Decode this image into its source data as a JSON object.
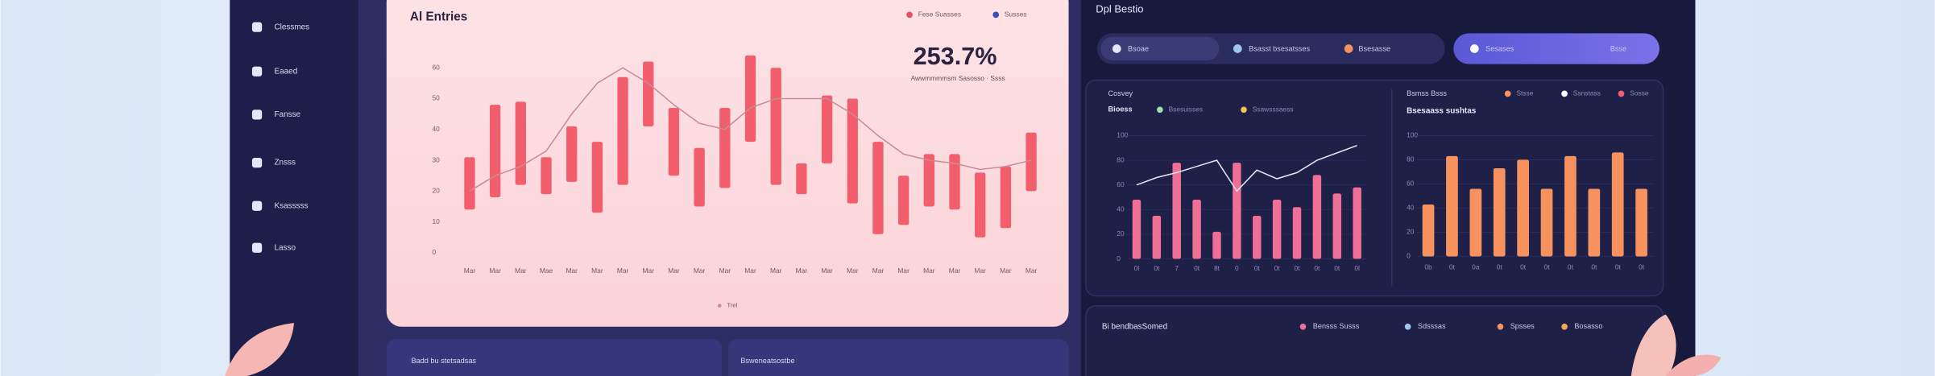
{
  "sidebar": {
    "items": [
      "Clessmes",
      "Eaaed",
      "Fansse",
      "Znsss",
      "Ksasssss",
      "Lasso"
    ]
  },
  "header": {
    "title": "Dpl Bestio"
  },
  "tabs": [
    "Bsoae",
    "Bsasst bsesatsses",
    "Bsesasse",
    "Sesases",
    "Bsse"
  ],
  "kpi": {
    "value": "253.7%",
    "caption": "Awwmmmmsm Sasosso · Ssss"
  },
  "bottom_cards": [
    "Badd bu stetsadsas",
    "Bsweneatsostbe"
  ],
  "bottom_right": {
    "title": "Bi bendbasSomed",
    "legend": [
      "Bensss Susss",
      "Sdsssas",
      "Spsses",
      "Bosasso"
    ]
  },
  "chart_data": [
    {
      "type": "range_bar",
      "title": "Al Entries",
      "legend": [
        {
          "label": "Fese Suasses",
          "color": "#e8505c"
        },
        {
          "label": "Susses",
          "color": "#3d4bbb"
        }
      ],
      "categories": [
        "Mar",
        "Mar",
        "Mar",
        "Mae",
        "Mar",
        "Mar",
        "Mar",
        "Mar",
        "Mar",
        "Mar",
        "Mar",
        "Mar",
        "Mar",
        "Mar",
        "Mar",
        "Mar",
        "Mar",
        "Mar",
        "Mar",
        "Mar",
        "Mar",
        "Mar",
        "Mar"
      ],
      "series": [
        {
          "color": "#f25e6b",
          "low": [
            14,
            18,
            22,
            19,
            23,
            13,
            22,
            41,
            25,
            15,
            21,
            36,
            22,
            19,
            29,
            16,
            6,
            9,
            15,
            14,
            5,
            8,
            20
          ],
          "high": [
            31,
            48,
            49,
            31,
            41,
            36,
            57,
            62,
            47,
            34,
            47,
            64,
            60,
            29,
            51,
            50,
            36,
            25,
            32,
            32,
            26,
            28,
            39
          ]
        },
        {
          "name": "Trel",
          "type": "line",
          "color": "#c98a9a",
          "values": [
            20,
            25,
            28,
            33,
            45,
            55,
            60,
            55,
            48,
            42,
            40,
            47,
            50,
            50,
            50,
            45,
            38,
            32,
            30,
            29,
            27,
            28,
            30
          ]
        }
      ],
      "ylim": [
        0,
        70
      ],
      "yticks": [
        0,
        10,
        20,
        30,
        40,
        50,
        60
      ],
      "grid": false
    },
    {
      "type": "bar",
      "title": "Cosvey",
      "subtitle": "Bioess",
      "legend": [
        {
          "label": "Bsesuisses",
          "color": "#9fe0b0"
        },
        {
          "label": "Ssawsssaess",
          "color": "#f3c64a"
        }
      ],
      "categories": [
        "0l",
        "0t",
        "7",
        "0t",
        "8t",
        "0",
        "0t",
        "0t",
        "0t",
        "0t",
        "0t",
        "0l"
      ],
      "series": [
        {
          "color": "#f06f96",
          "values": [
            48,
            35,
            78,
            48,
            22,
            78,
            35,
            48,
            42,
            68,
            53,
            58
          ]
        },
        {
          "type": "line",
          "color": "#e8e8f4",
          "values": [
            60,
            66,
            70,
            75,
            80,
            55,
            72,
            65,
            70,
            80,
            86,
            92
          ]
        }
      ],
      "ylim": [
        0,
        100
      ],
      "yticks": [
        0,
        20,
        40,
        60,
        80,
        100
      ],
      "grid": true
    },
    {
      "type": "bar",
      "title": "Bsmss Bsss",
      "subtitle": "Bsesaass sushtas",
      "legend": [
        {
          "label": "Stsse",
          "color": "#f7925e"
        },
        {
          "label": "Ssnstass",
          "color": "#ffffff"
        },
        {
          "label": "Sosse",
          "color": "#f0606e"
        }
      ],
      "categories": [
        "0b",
        "0t",
        "0a",
        "0t",
        "0t",
        "0t",
        "0t",
        "0t",
        "0t",
        "0t"
      ],
      "series": [
        {
          "color": "#f7925e",
          "values": [
            43,
            83,
            56,
            73,
            80,
            56,
            83,
            56,
            86,
            56
          ]
        }
      ],
      "ylim": [
        0,
        100
      ],
      "yticks": [
        0,
        20,
        40,
        60,
        80,
        100
      ],
      "grid": true
    }
  ]
}
